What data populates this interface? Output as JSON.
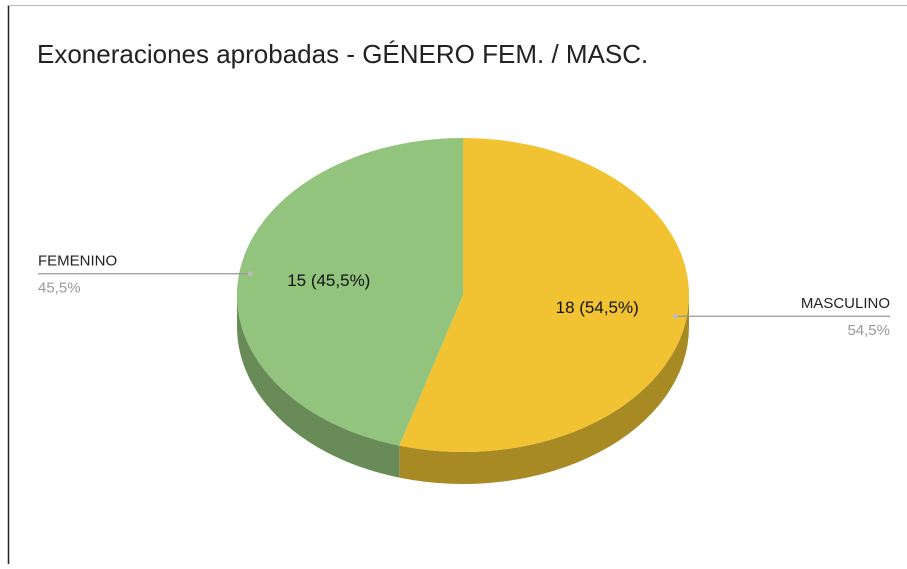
{
  "chart_data": {
    "type": "pie",
    "title": "Exoneraciones aprobadas - GÉNERO FEM. / MASC.",
    "categories": [
      "MASCULINO",
      "FEMENINO"
    ],
    "values": [
      18,
      15
    ],
    "value_labels": [
      "18 (54,5%)",
      "15 (45,5%)"
    ],
    "outer_labels": [
      "54,5%",
      "45,5%"
    ],
    "colors": [
      "#f1c232",
      "#93c47d"
    ],
    "side_colors": [
      "#a88a24",
      "#688b58"
    ],
    "three_d": true
  }
}
